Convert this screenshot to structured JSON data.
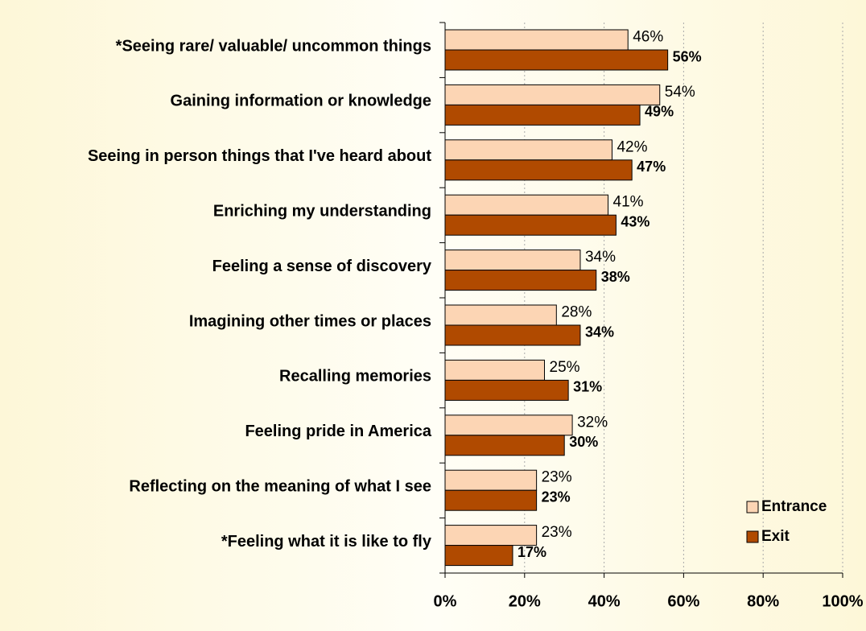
{
  "chart_data": {
    "type": "hbar",
    "categories": [
      "*Seeing rare/ valuable/ uncommon things",
      "Gaining information or knowledge",
      "Seeing in person things that I've heard about",
      "Enriching my understanding",
      "Feeling a sense of discovery",
      "Imagining other times or places",
      "Recalling memories",
      "Feeling pride in America",
      "Reflecting on the meaning of what I see",
      "*Feeling what it is like to fly"
    ],
    "series": [
      {
        "name": "Entrance",
        "color": "#fcd5b4",
        "values": [
          46,
          54,
          42,
          41,
          34,
          28,
          25,
          32,
          23,
          23
        ],
        "value_labels": [
          "46%",
          "54%",
          "42%",
          "41%",
          "34%",
          "28%",
          "25%",
          "32%",
          "23%",
          "23%"
        ]
      },
      {
        "name": "Exit",
        "color": "#b04a00",
        "values": [
          56,
          49,
          47,
          43,
          38,
          34,
          31,
          30,
          23,
          17
        ],
        "value_labels": [
          "56%",
          "49%",
          "47%",
          "43%",
          "38%",
          "34%",
          "31%",
          "30%",
          "23%",
          "17%"
        ]
      }
    ],
    "xlim": [
      0,
      100
    ],
    "xticks": [
      {
        "value": 0,
        "label": "0%"
      },
      {
        "value": 20,
        "label": "20%"
      },
      {
        "value": 40,
        "label": "40%"
      },
      {
        "value": 60,
        "label": "60%"
      },
      {
        "value": 80,
        "label": "80%"
      },
      {
        "value": 100,
        "label": "100%"
      }
    ],
    "grid": true,
    "legend": "lower right"
  }
}
